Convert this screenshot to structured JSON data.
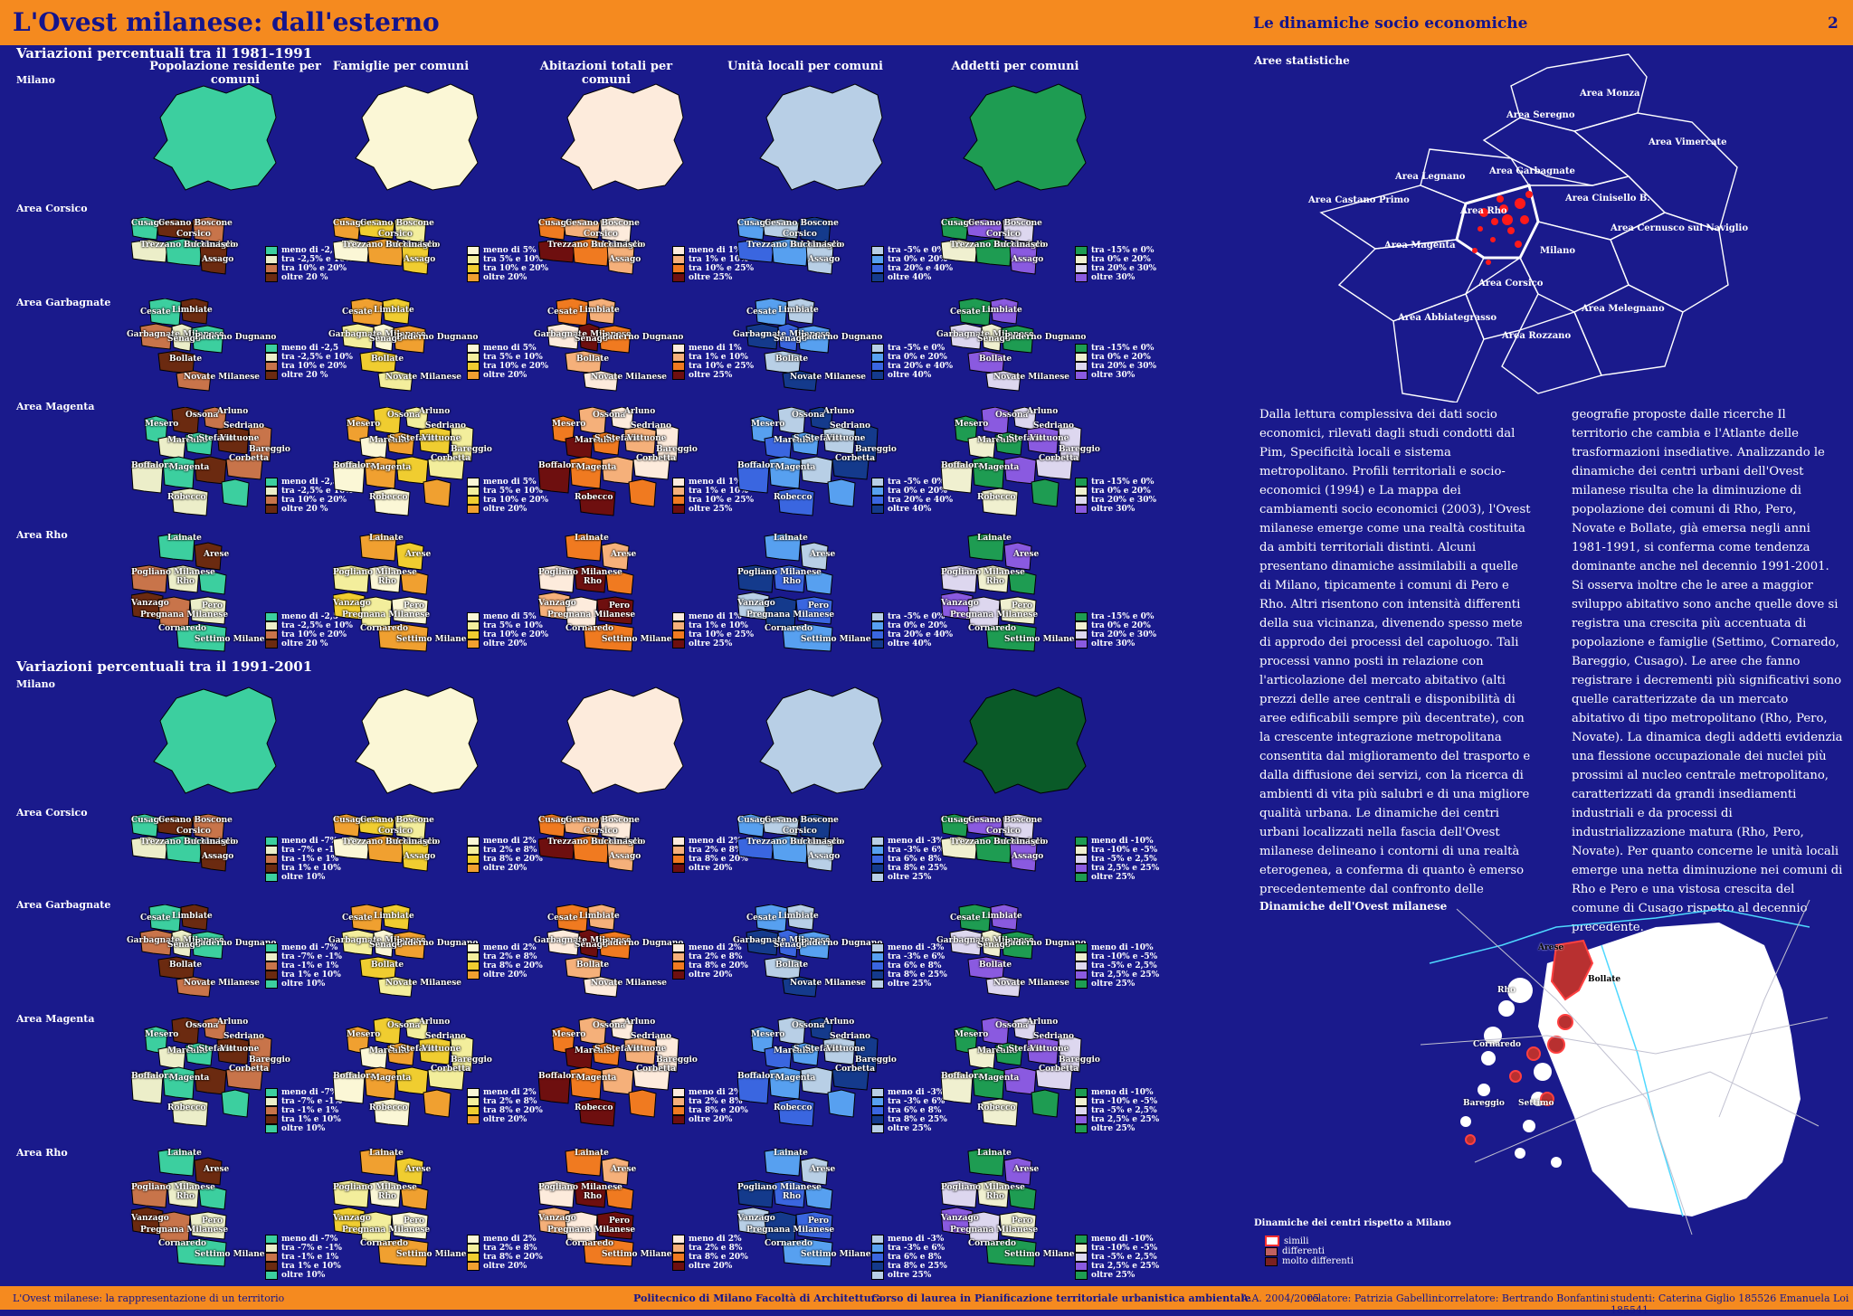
{
  "header": {
    "title": "L'Ovest milanese: dall'esterno",
    "subtitle": "Le dinamiche socio economiche",
    "page": "2"
  },
  "section1": {
    "title": "Variazioni percentuali tra il  1981-1991"
  },
  "section2": {
    "title": "Variazioni percentuali tra il  1991-2001"
  },
  "columns": [
    "Popolazione residente per comuni",
    "Famiglie per comuni",
    "Abitazioni totali per comuni",
    "Unità locali per comuni",
    "Addetti per comuni"
  ],
  "rows": [
    "Milano",
    "Area Corsico",
    "Area Garbagnate",
    "Area Magenta",
    "Area Rho"
  ],
  "colors": {
    "pop": [
      "#3ccf9f",
      "#eceec9",
      "#c8744a",
      "#6b2a10"
    ],
    "fam": [
      "#fbf7d6",
      "#f3ee9c",
      "#f0cd30",
      "#f0a030"
    ],
    "abi": [
      "#fdebdc",
      "#f5b07a",
      "#f07a20",
      "#6e0f0f"
    ],
    "uni": [
      "#b8cfe6",
      "#57a0f0",
      "#3a66e0",
      "#143a8c"
    ],
    "add": [
      "#1e9c52",
      "#f0f0d0",
      "#ddd7ef",
      "#8a5ae0"
    ]
  },
  "milano_fill_1991": [
    "#3ccf9f",
    "#fbf7d6",
    "#fdebdc",
    "#b8cfe6",
    "#1e9c52"
  ],
  "milano_fill_2001": [
    "#3ccf9f",
    "#fbf7d6",
    "#fdebdc",
    "#b8cfe6",
    "#0a5a28"
  ],
  "legends_1991": [
    [
      "meno di -2,5",
      "tra -2,5% e 10%",
      "tra  10% e 20%",
      "oltre 20 %"
    ],
    [
      "meno di 5%",
      "tra 5% e 10%",
      "tra 10% e 20%",
      "oltre 20%"
    ],
    [
      "meno di 1%",
      "tra 1% e 10%",
      "tra 10% e 25%",
      "oltre 25%"
    ],
    [
      "tra -5% e 0%",
      "tra 0% e 20%",
      "tra  20% e 40%",
      "oltre 40%"
    ],
    [
      "tra -15% e 0%",
      "tra 0% e 20%",
      "tra  20% e 30%",
      "oltre 30%"
    ]
  ],
  "legends_2001": [
    [
      "meno di -7%",
      "tra -7% e -1%",
      "tra -1% e 1%",
      "tra  1% e 10%",
      "oltre 10%"
    ],
    [
      "meno di 2%",
      "tra 2% e 8%",
      "tra 8% e 20%",
      "oltre 20%"
    ],
    [
      "meno di 2%",
      "tra 2% e 8%",
      "tra 8% e 20%",
      "oltre 20%"
    ],
    [
      "meno di -3%",
      "tra -3% e 6%",
      "tra 6% e 8%",
      "tra  8% e 25%",
      "oltre 25%"
    ],
    [
      "meno di -10%",
      "tra -10% e -5%",
      "tra -5% e 2,5%",
      "tra  2,5% e 25%",
      "oltre 25%"
    ]
  ],
  "towns": {
    "corsico": [
      "Cusago",
      "Cesano Boscone",
      "Corsico",
      "Trezzano sul Naviglio",
      "Buccinasco",
      "Assago"
    ],
    "garbagnate": [
      "Cesate",
      "Limbiate",
      "Garbagnate Milanese",
      "Senago",
      "Paderno Dugnano",
      "Bollate",
      "Novate Milanese"
    ],
    "magenta": [
      "Mesero",
      "Ossona",
      "Arluno",
      "Marcallo",
      "S. Stefano",
      "Sedriano",
      "Vittuone",
      "Bareggio",
      "Boffalora",
      "Magenta",
      "Corbetta",
      "Robecco"
    ],
    "rho": [
      "Lainate",
      "Arese",
      "Pogliano Milanese",
      "Rho",
      "Vanzago",
      "Pregnana Milanese",
      "Pero",
      "Cornaredo",
      "Settimo Milanese"
    ]
  },
  "right": {
    "aree_title": "Aree statistiche",
    "areas": [
      "Area Monza",
      "Area Seregno",
      "Area Vimercate",
      "Area Legnano",
      "Area Garbagnate",
      "Area Castano Primo",
      "Area Rho",
      "Area Cinisello B.",
      "Area Cernusco sul Naviglio",
      "Area Magenta",
      "Milano",
      "Area Corsico",
      "Area Abbiategrasso",
      "Area Melegnano",
      "Area Rozzano"
    ],
    "text_col1": "Dalla lettura complessiva dei dati socio economici, rilevati dagli studi condotti dal Pim, Specificità locali e sistema metropolitano. Profili territoriali e socio-economici (1994) e La mappa dei cambiamenti socio economici (2003), l'Ovest milanese emerge come una realtà costituita da ambiti territoriali distinti. Alcuni presentano dinamiche assimilabili a quelle di Milano, tipicamente i comuni di Pero e Rho. Altri risentono con intensità differenti della sua vicinanza, divenendo spesso mete di approdo dei processi del capoluogo. Tali processi vanno posti in relazione con l'articolazione del mercato abitativo (alti prezzi delle aree centrali e disponibilità di aree edificabili sempre più decentrate), con la crescente integrazione metropolitana consentita dal miglioramento del trasporto e dalla diffusione dei servizi, con la ricerca di ambienti di vita più salubri e di una migliore qualità urbana. Le dinamiche dei centri urbani localizzati nella fascia dell'Ovest milanese delineano i contorni di una realtà eterogenea, a conferma di quanto è emerso precedentemente dal confronto delle",
    "text_col2": "geografie proposte dalle ricerche Il territorio  che cambia e l'Atlante delle trasformazioni insediative. Analizzando le dinamiche dei centri urbani dell'Ovest milanese risulta che la diminuzione di popolazione dei comuni di Rho, Pero, Novate e Bollate, già emersa negli anni 1981-1991, si conferma come tendenza dominante anche nel decennio 1991-2001. Si osserva inoltre che le aree a maggior sviluppo abitativo sono anche quelle dove si registra una crescita più accentuata di popolazione e famiglie (Settimo, Cornaredo, Bareggio, Cusago). Le aree che fanno registrare i decrementi più significativi sono quelle caratterizzate da un mercato abitativo di tipo metropolitano (Rho, Pero, Novate). La dinamica degli addetti evidenzia una flessione occupazionale dei nuclei più prossimi al nucleo centrale metropolitano, caratterizzati da grandi insediamenti industriali e da processi di industrializzazione matura (Rho, Pero, Novate). Per quanto concerne le unità locali emerge una netta diminuzione nei comuni di Rho e Pero e una vistosa crescita del comune di Cusago rispetto al decennio precedente.",
    "dyn_title": "Dinamiche dell'Ovest milanese",
    "dyn_labels": [
      "Arese",
      "Bollate",
      "Rho",
      "Cornaredo",
      "Bareggio",
      "Settimo"
    ],
    "dyn_legend_title": "Dinamiche dei centri rispetto a Milano",
    "dyn_legend": [
      "simili",
      "differenti",
      "molto differenti"
    ]
  },
  "footer": {
    "left": "L'Ovest milanese: la rappresentazione di un territorio",
    "mid1": "Politecnico di Milano  Facoltà di Architettura",
    "mid2": "Corso di laurea in Pianificazione territoriale urbanistica  ambientale",
    "aa": "A.A. 2004/2005",
    "rel": "relatore: Patrizia Gabellini",
    "corr": "correlatore: Bertrando Bonfantini",
    "stud": "studenti: Caterina Giglio 185526   Emanuela Loi 185541"
  }
}
